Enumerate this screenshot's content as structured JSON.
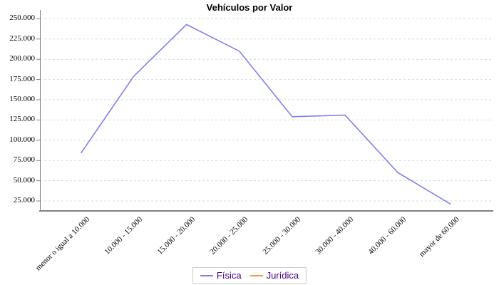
{
  "title": "Vehículos por Valor",
  "legend": {
    "position": "bottom-center",
    "items": [
      {
        "label": "Física",
        "color": "#8080ee"
      },
      {
        "label": "Jurídica",
        "color": "#ee9944"
      }
    ]
  },
  "colors": {
    "fisica_line": "#8080ee",
    "juridica_line": "#ee9944",
    "legend_text": "#440088",
    "gridline": "#d9d9d9",
    "axis": "#808080",
    "title_text": "#000000",
    "tick_label_text": "#000000"
  },
  "chart_data": {
    "type": "line",
    "title": "Vehículos por Valor",
    "xlabel": "",
    "ylabel": "",
    "grid": "horizontal-dashed",
    "legend_position": "bottom",
    "categories": [
      "menor o igual a 10.000",
      "10.000 - 15.000",
      "15.000 - 20.000",
      "20.000 - 25.000",
      "25.000 - 30.000",
      "30.000 - 40.000",
      "40.000 - 60.000",
      "mayor de 60.000"
    ],
    "series": [
      {
        "name": "Física",
        "color": "#8080ee",
        "values": [
          84000,
          179000,
          243000,
          210000,
          129000,
          131000,
          60000,
          21000
        ]
      },
      {
        "name": "Jurídica",
        "color": "#ee9944",
        "values": [],
        "note": "listed in legend but no line visible in plot area"
      }
    ],
    "y_ticks": [
      25000,
      50000,
      75000,
      100000,
      125000,
      150000,
      175000,
      200000,
      225000,
      250000
    ],
    "y_tick_labels": [
      "25.000",
      "50.000",
      "75.000",
      "100.000",
      "125.000",
      "150.000",
      "175.000",
      "200.000",
      "225.000",
      "250.000"
    ],
    "ylim": [
      12500,
      272500
    ],
    "x_tick_label_rotation_deg": -45
  }
}
